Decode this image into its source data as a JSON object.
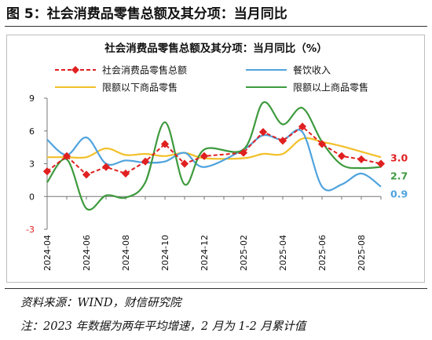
{
  "figure_title": "图 5：社会消费品零售总额及其分项：当月同比",
  "source_note": "资料来源：WIND，财信研究院",
  "footnote": "注：2023 年数据为两年平均增速，2 月为 1-2 月累计值",
  "chart_data": {
    "type": "line",
    "title": "社会消费品零售总额及其分项：当月同比（%）",
    "ylim": [
      -3,
      9
    ],
    "yticks": [
      -3,
      0,
      3,
      6,
      9
    ],
    "grid": false,
    "legend_position": "top",
    "x": [
      "2024-04",
      "2024-05",
      "2024-06",
      "2024-07",
      "2024-08",
      "2024-09",
      "2024-10",
      "2024-11",
      "2024-12",
      "2025-01",
      "2025-02",
      "2025-03",
      "2025-04",
      "2025-05",
      "2025-06",
      "2025-07",
      "2025-08",
      "2025-09"
    ],
    "x_tick_labels": [
      "2024-04",
      "2024-06",
      "2024-08",
      "2024-10",
      "2024-12",
      "2025-02",
      "2025-04",
      "2025-06",
      "2025-08"
    ],
    "series": [
      {
        "name": "社会消费品零售总额",
        "color": "#e02020",
        "style": "dashed-diamond",
        "values": [
          2.3,
          3.7,
          2.0,
          2.7,
          2.1,
          3.2,
          4.8,
          3.0,
          3.7,
          null,
          4.0,
          5.9,
          5.1,
          6.4,
          4.8,
          3.7,
          3.4,
          3.0
        ],
        "end_label": "3.0"
      },
      {
        "name": "餐饮收入",
        "color": "#4fa3dd",
        "style": "solid",
        "values": [
          5.2,
          3.8,
          5.4,
          3.0,
          3.3,
          3.1,
          3.2,
          4.0,
          2.7,
          null,
          4.3,
          5.6,
          5.2,
          5.9,
          0.9,
          1.1,
          2.1,
          0.9
        ],
        "end_label": "0.9"
      },
      {
        "name": "限额以下商品零售",
        "color": "#f2c029",
        "style": "solid",
        "values": [
          3.6,
          3.6,
          3.6,
          4.4,
          3.8,
          3.9,
          3.7,
          4.0,
          3.5,
          null,
          3.5,
          3.9,
          3.9,
          5.3,
          5.0,
          4.6,
          4.1,
          3.6
        ],
        "end_label": ""
      },
      {
        "name": "限额以上商品零售",
        "color": "#3d9a3d",
        "style": "solid",
        "values": [
          1.3,
          3.4,
          -1.1,
          0.1,
          -0.1,
          1.3,
          6.8,
          1.1,
          4.3,
          null,
          4.3,
          8.6,
          6.6,
          8.1,
          5.0,
          2.9,
          2.6,
          2.7
        ],
        "end_label": "2.7"
      }
    ]
  }
}
